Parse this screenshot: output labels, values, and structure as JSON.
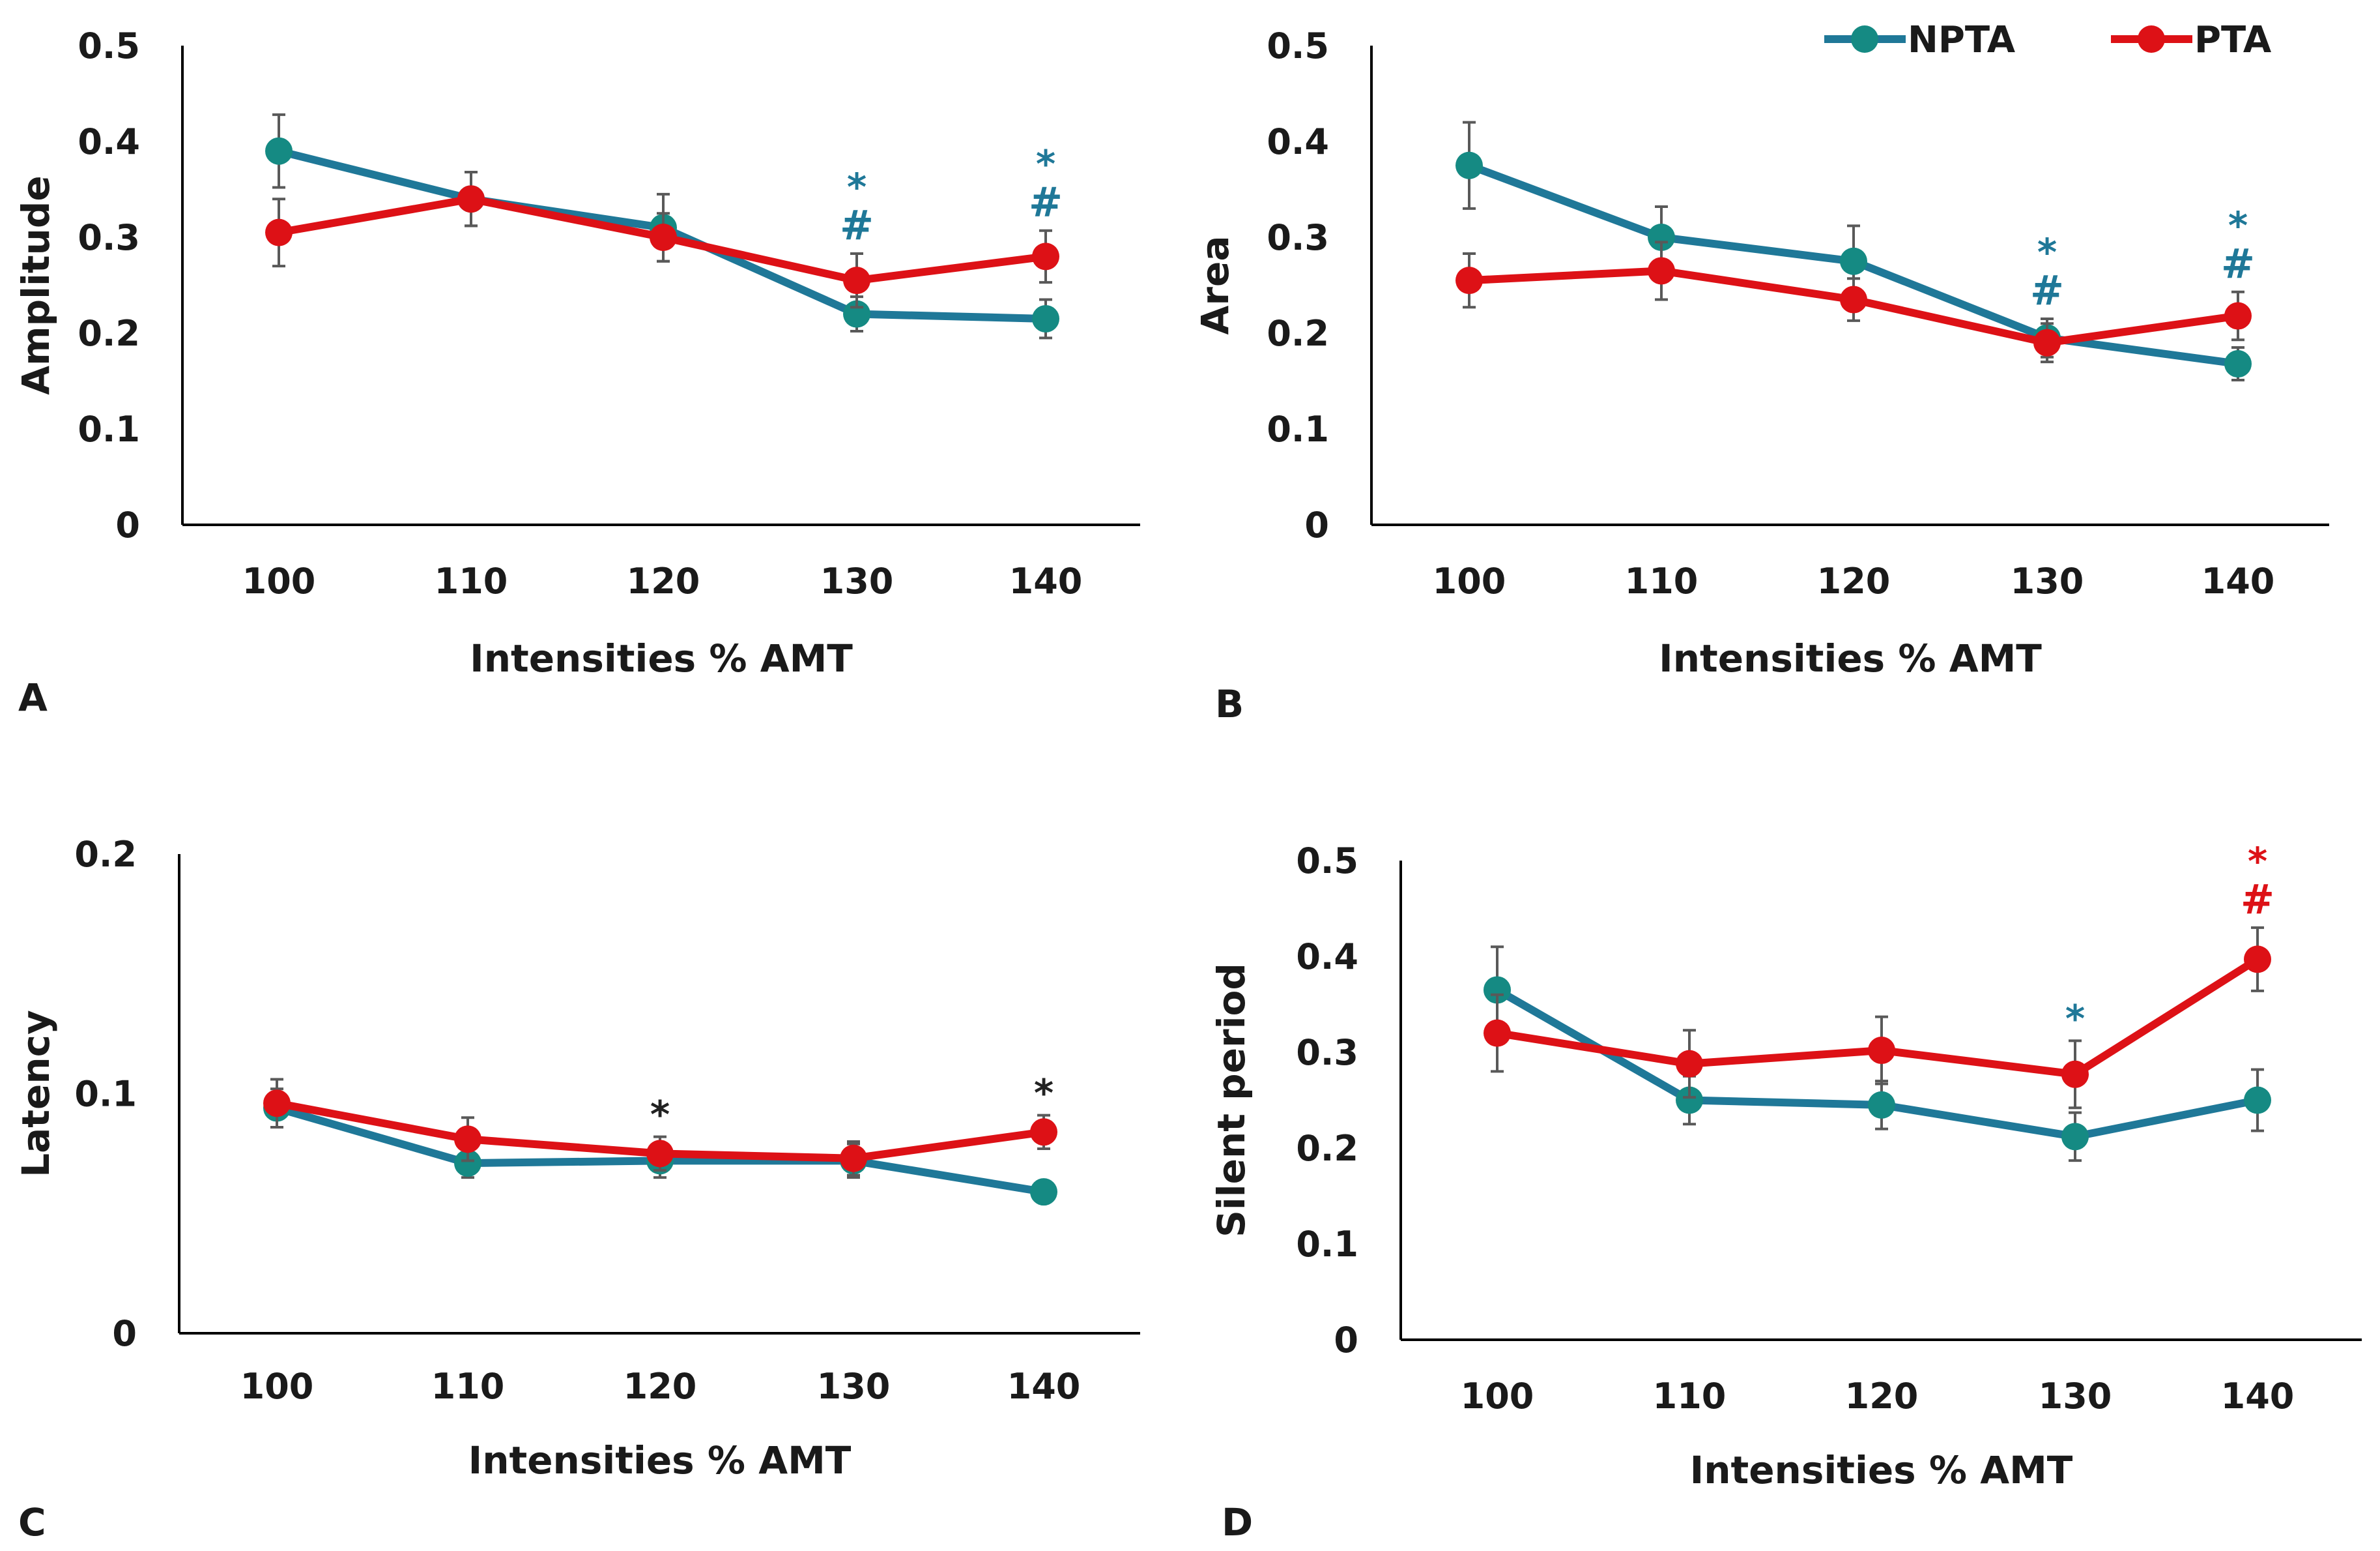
{
  "colors": {
    "npta": "#1f7898",
    "pta": "#dd1116",
    "teal_marker": "#158a83",
    "axis": "#000000",
    "error": "#595959",
    "black_annot": "#222222"
  },
  "legend": {
    "npta": "NPTA",
    "pta": "PTA"
  },
  "chart_data": [
    {
      "type": "line",
      "panel_label": "A",
      "xlabel": "Intensities % AMT",
      "ylabel": "Amplitude",
      "categories": [
        "100",
        "110",
        "120",
        "130",
        "140"
      ],
      "ylim": [
        0,
        0.5
      ],
      "yticks": [
        "0",
        "0.1",
        "0.2",
        "0.3",
        "0.4",
        "0.5"
      ],
      "series": [
        {
          "name": "NPTA",
          "values": [
            0.39,
            0.34,
            0.31,
            0.22,
            0.215
          ],
          "errors": [
            0.038,
            0.028,
            0.035,
            0.018,
            0.02
          ]
        },
        {
          "name": "PTA",
          "values": [
            0.305,
            0.34,
            0.3,
            0.255,
            0.28
          ],
          "errors": [
            0.035,
            0.028,
            0.025,
            0.028,
            0.027
          ]
        }
      ],
      "annotations": [
        {
          "category": "130",
          "lines": [
            "*",
            "#"
          ],
          "color": "blue"
        },
        {
          "category": "140",
          "lines": [
            "*",
            "#"
          ],
          "color": "blue"
        }
      ]
    },
    {
      "type": "line",
      "panel_label": "B",
      "xlabel": "Intensities % AMT",
      "ylabel": "Area",
      "categories": [
        "100",
        "110",
        "120",
        "130",
        "140"
      ],
      "ylim": [
        0,
        0.5
      ],
      "yticks": [
        "0",
        "0.1",
        "0.2",
        "0.3",
        "0.4",
        "0.5"
      ],
      "series": [
        {
          "name": "NPTA",
          "values": [
            0.375,
            0.3,
            0.275,
            0.195,
            0.168
          ],
          "errors": [
            0.045,
            0.032,
            0.037,
            0.02,
            0.017
          ]
        },
        {
          "name": "PTA",
          "values": [
            0.255,
            0.265,
            0.235,
            0.19,
            0.218
          ],
          "errors": [
            0.028,
            0.03,
            0.022,
            0.02,
            0.025
          ]
        }
      ],
      "annotations": [
        {
          "category": "130",
          "lines": [
            "*",
            "#"
          ],
          "color": "blue"
        },
        {
          "category": "140",
          "lines": [
            "*",
            "#"
          ],
          "color": "blue"
        }
      ]
    },
    {
      "type": "line",
      "panel_label": "C",
      "xlabel": "Intensities % AMT",
      "ylabel": "Latency",
      "categories": [
        "100",
        "110",
        "120",
        "130",
        "140"
      ],
      "ylim": [
        0,
        0.2
      ],
      "yticks": [
        "0",
        "0.1",
        "0.2"
      ],
      "series": [
        {
          "name": "NPTA",
          "values": [
            0.094,
            0.071,
            0.072,
            0.072,
            0.059
          ],
          "errors": [
            0.008,
            0.006,
            0.007,
            0.007,
            0.004
          ]
        },
        {
          "name": "PTA",
          "values": [
            0.096,
            0.081,
            0.075,
            0.073,
            0.084
          ],
          "errors": [
            0.01,
            0.009,
            0.007,
            0.007,
            0.007
          ]
        }
      ],
      "annotations": [
        {
          "category": "120",
          "lines": [
            "*"
          ],
          "color": "black"
        },
        {
          "category": "140",
          "lines": [
            "*"
          ],
          "color": "black"
        }
      ]
    },
    {
      "type": "line",
      "panel_label": "D",
      "xlabel": "Intensities % AMT",
      "ylabel": "Silent period",
      "categories": [
        "100",
        "110",
        "120",
        "130",
        "140"
      ],
      "ylim": [
        0,
        0.5
      ],
      "yticks": [
        "0",
        "0.1",
        "0.2",
        "0.3",
        "0.4",
        "0.5"
      ],
      "series": [
        {
          "name": "NPTA",
          "values": [
            0.365,
            0.25,
            0.245,
            0.212,
            0.25
          ],
          "errors": [
            0.045,
            0.025,
            0.025,
            0.025,
            0.032
          ]
        },
        {
          "name": "PTA",
          "values": [
            0.32,
            0.288,
            0.302,
            0.277,
            0.397
          ],
          "errors": [
            0.04,
            0.035,
            0.035,
            0.035,
            0.033
          ]
        }
      ],
      "annotations": [
        {
          "category": "130",
          "lines": [
            "*"
          ],
          "color": "blue"
        },
        {
          "category": "140",
          "lines": [
            "*",
            "#"
          ],
          "color": "red"
        }
      ]
    }
  ]
}
